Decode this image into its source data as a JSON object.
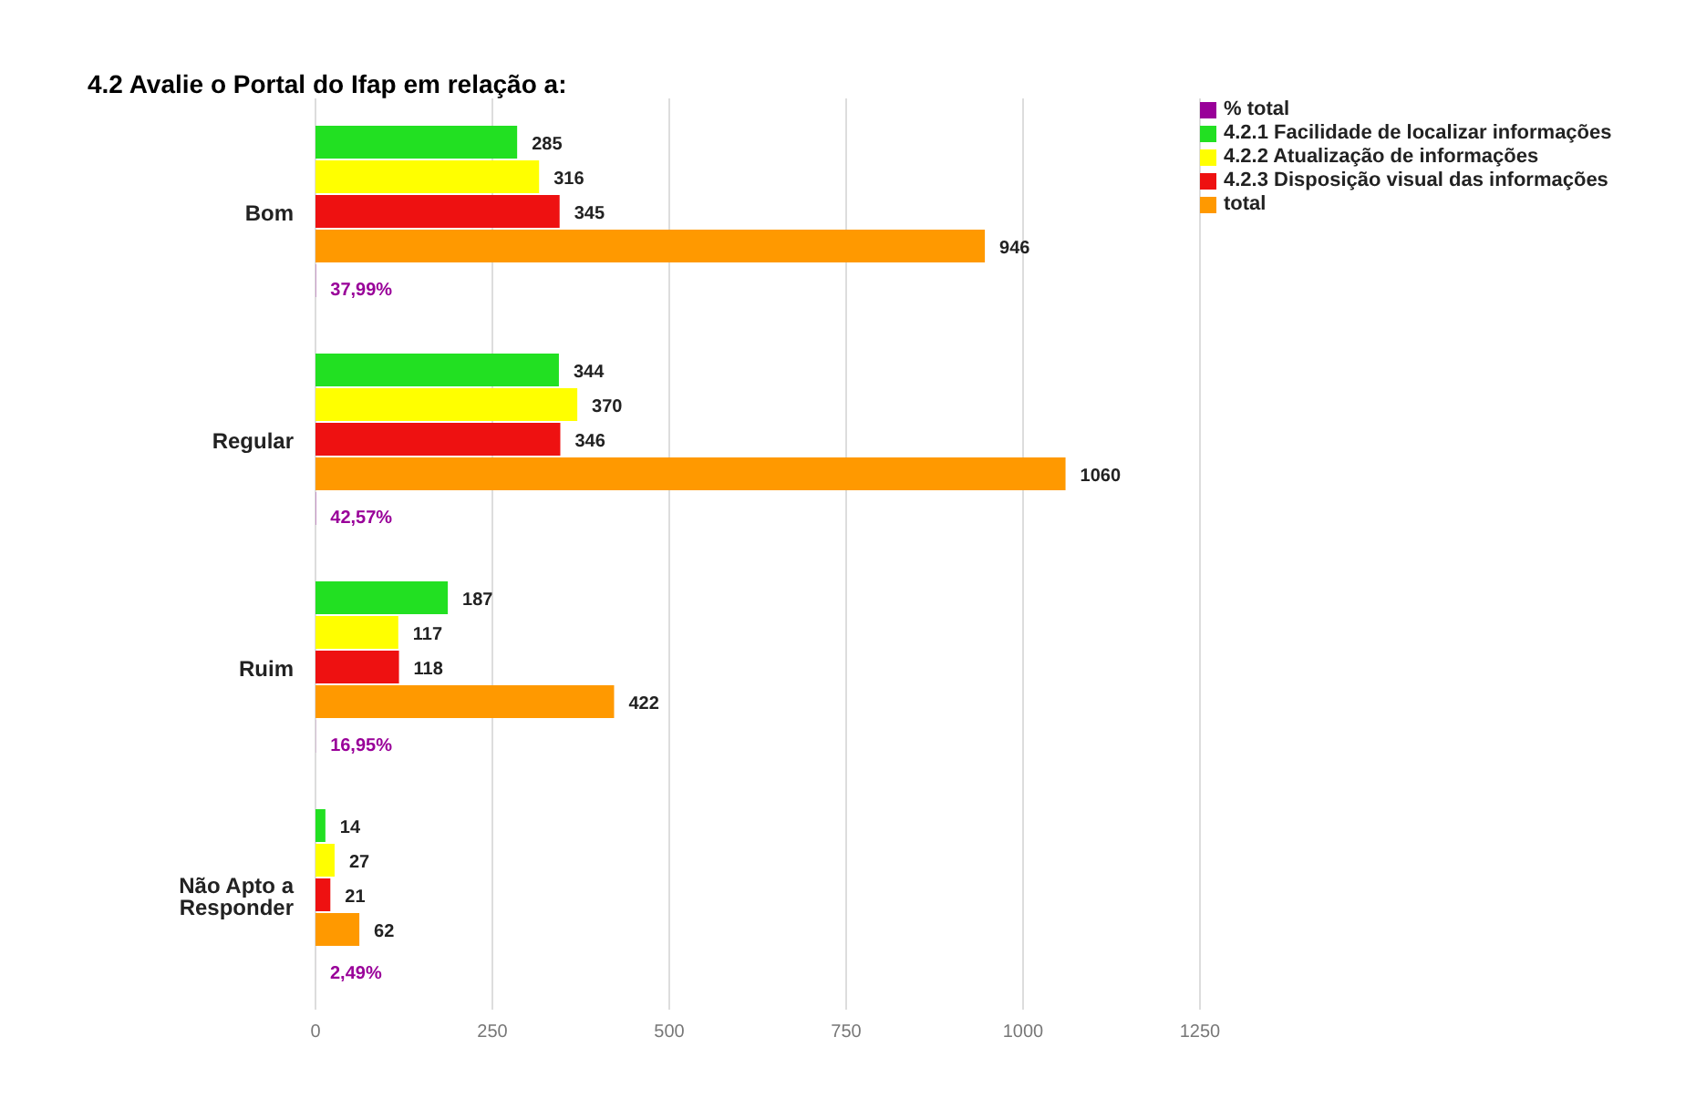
{
  "chart_data": {
    "type": "bar",
    "orientation": "horizontal",
    "title": "4.2 Avalie o Portal do Ifap em relação a:",
    "categories": [
      "Bom",
      "Regular",
      "Ruim",
      "Não Apto a Responder"
    ],
    "series": [
      {
        "name": "4.2.1 Facilidade de localizar informações",
        "color": "#22e022",
        "values": [
          285,
          344,
          187,
          14
        ],
        "value_labels": [
          "285",
          "344",
          "187",
          "14"
        ]
      },
      {
        "name": "4.2.2 Atualização de informações",
        "color": "#ffff00",
        "values": [
          316,
          370,
          117,
          27
        ],
        "value_labels": [
          "316",
          "370",
          "117",
          "27"
        ]
      },
      {
        "name": "4.2.3 Disposição visual das informações",
        "color": "#ee1111",
        "values": [
          345,
          346,
          118,
          21
        ],
        "value_labels": [
          "345",
          "346",
          "118",
          "21"
        ]
      },
      {
        "name": "total",
        "color": "#ff9900",
        "values": [
          946,
          1060,
          422,
          62
        ],
        "value_labels": [
          "946",
          "1060",
          "422",
          "62"
        ]
      },
      {
        "name": "% total",
        "color": "#990099",
        "values": [
          0.3799,
          0.4257,
          0.1695,
          0.0249
        ],
        "value_labels": [
          "37,99%",
          "42,57%",
          "16,95%",
          "2,49%"
        ]
      }
    ],
    "xlim": [
      0,
      1250
    ],
    "xticks": [
      0,
      250,
      500,
      750,
      1000,
      1250
    ],
    "grid": "x",
    "legend": "top right"
  }
}
